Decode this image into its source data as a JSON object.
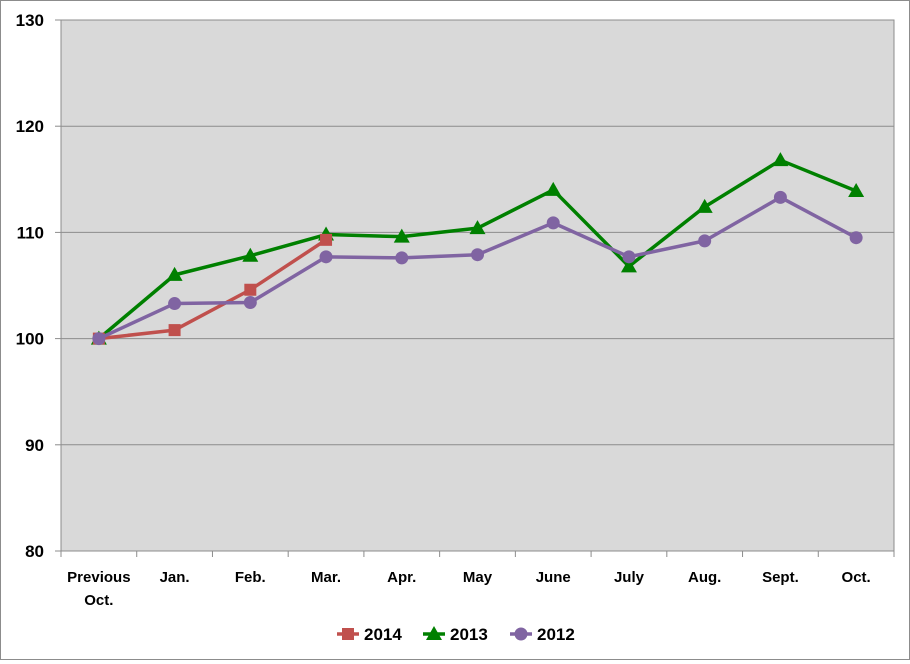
{
  "chart_data": {
    "type": "line",
    "categories": [
      [
        "Previous",
        "Oct."
      ],
      [
        "Jan."
      ],
      [
        "Feb."
      ],
      [
        "Mar."
      ],
      [
        "Apr."
      ],
      [
        "May"
      ],
      [
        "June"
      ],
      [
        "July"
      ],
      [
        "Aug."
      ],
      [
        "Sept."
      ],
      [
        "Oct."
      ]
    ],
    "ylim": [
      80,
      130
    ],
    "yticks": [
      "80",
      "90",
      "100",
      "110",
      "120",
      "130"
    ],
    "grid": true,
    "legend_position": "bottom",
    "plot_background": "#d9d9d9",
    "series": [
      {
        "name": "2014",
        "color": "#c0504d",
        "marker": "square",
        "values": [
          100,
          100.8,
          104.6,
          109.3,
          null,
          null,
          null,
          null,
          null,
          null,
          null
        ]
      },
      {
        "name": "2013",
        "color": "#008000",
        "marker": "triangle",
        "values": [
          100,
          106,
          107.8,
          109.8,
          109.6,
          110.4,
          114,
          106.8,
          112.4,
          116.8,
          113.9
        ]
      },
      {
        "name": "2012",
        "color": "#8064a2",
        "marker": "circle",
        "values": [
          100,
          103.3,
          103.4,
          107.7,
          107.6,
          107.9,
          110.9,
          107.7,
          109.2,
          113.3,
          109.5
        ]
      }
    ]
  }
}
